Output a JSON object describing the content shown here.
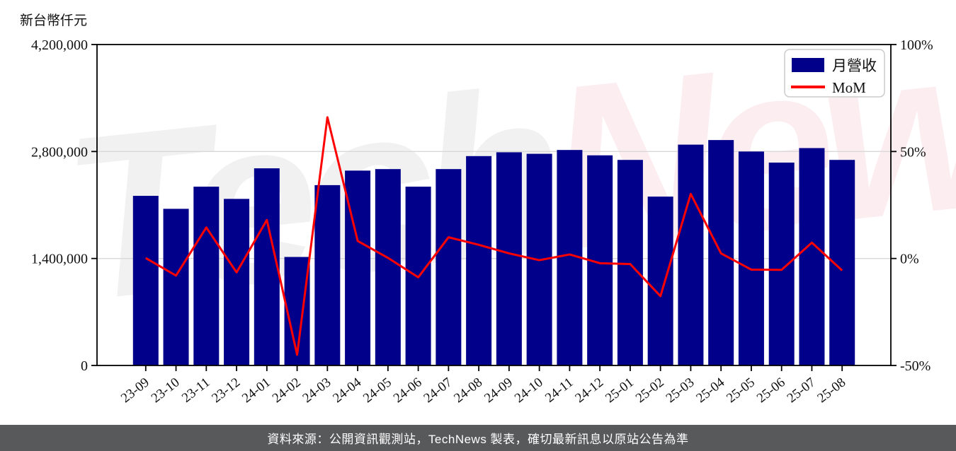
{
  "title_unit": "新台幣仟元",
  "watermark": {
    "part1": "Tech",
    "part2": "News"
  },
  "footer": {
    "text": "資料來源：公開資訊觀測站，TechNews 製表，確切最新訊息以原站公告為準"
  },
  "legend": {
    "position": "top-right",
    "items": [
      {
        "label": "月營收",
        "type": "bar",
        "color": "#00008B"
      },
      {
        "label": "MoM",
        "type": "line",
        "color": "#FF0000"
      }
    ]
  },
  "colors": {
    "bar": "#00008B",
    "line": "#FF0000",
    "spine": "#000000",
    "grid": "#d8d8d8",
    "footer_bg": "#58595b",
    "footer_text": "#ffffff"
  },
  "chart_data": {
    "type": "bar",
    "subtype": "bar-line-combo",
    "title": "",
    "categories": [
      "23-09",
      "23-10",
      "23-11",
      "23-12",
      "24-01",
      "24-02",
      "24-03",
      "24-04",
      "24-05",
      "24-06",
      "24-07",
      "24-08",
      "24-09",
      "24-10",
      "24-11",
      "24-12",
      "25-01",
      "25-02",
      "25-03",
      "25-04",
      "25-05",
      "25-06",
      "25-07",
      "25-08"
    ],
    "series": [
      {
        "name": "月營收",
        "type": "bar",
        "axis": "left",
        "color": "#00008B",
        "values": [
          2220000,
          2050000,
          2340000,
          2180000,
          2580000,
          1420000,
          2360000,
          2550000,
          2570000,
          2340000,
          2570000,
          2740000,
          2790000,
          2770000,
          2820000,
          2750000,
          2690000,
          2210000,
          2890000,
          2950000,
          2800000,
          2655000,
          2845000,
          2690000
        ]
      },
      {
        "name": "MoM",
        "type": "line",
        "axis": "right",
        "color": "#FF0000",
        "unit": "%",
        "values": [
          0.2,
          -8.0,
          14.5,
          -6.5,
          18.0,
          -45.0,
          66.0,
          8.2,
          0.3,
          -8.8,
          9.9,
          6.4,
          2.4,
          -0.8,
          1.9,
          -2.2,
          -2.6,
          -17.6,
          30.2,
          2.4,
          -5.2,
          -5.3,
          7.4,
          -5.6
        ]
      }
    ],
    "left_axis": {
      "label": "新台幣仟元",
      "range": [
        0,
        4200000
      ],
      "tick_values": [
        0,
        1400000,
        2800000,
        4200000
      ],
      "tick_labels": [
        "0",
        "1,400,000",
        "2,800,000",
        "4,200,000"
      ]
    },
    "right_axis": {
      "label": "",
      "range": [
        -50,
        100
      ],
      "tick_values": [
        -50,
        0,
        50,
        100
      ],
      "tick_labels": [
        "-50%",
        "0%",
        "50%",
        "100%"
      ]
    },
    "grid": {
      "horizontal_at_left_values": [
        1400000,
        2800000
      ],
      "vertical": false
    },
    "legend_position": "top-right",
    "x_tick_rotation_deg": -38
  }
}
